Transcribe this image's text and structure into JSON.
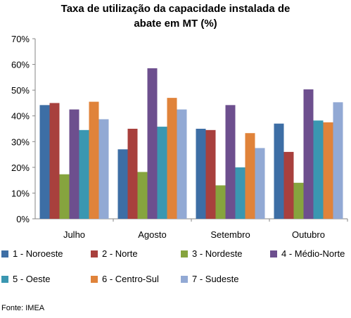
{
  "chart_data": {
    "type": "bar",
    "title_line1": "Taxa de utilização da capacidade instalada de",
    "title_line2": "abate em MT (%)",
    "categories": [
      "Julho",
      "Agosto",
      "Setembro",
      "Outubro"
    ],
    "ylim": [
      0,
      70
    ],
    "yticks": [
      "0%",
      "10%",
      "20%",
      "30%",
      "40%",
      "50%",
      "60%",
      "70%"
    ],
    "grid": false,
    "legend_position": "bottom",
    "series": [
      {
        "name": "1 - Noroeste",
        "color": "#3d6ea5",
        "values": [
          44.2,
          27.0,
          35.0,
          37.0
        ]
      },
      {
        "name": "2 - Norte",
        "color": "#a8403d",
        "values": [
          45.0,
          35.0,
          34.5,
          26.0
        ]
      },
      {
        "name": "3 - Nordeste",
        "color": "#86a43e",
        "values": [
          17.3,
          18.2,
          13.0,
          14.0
        ]
      },
      {
        "name": "4 - Médio-Norte",
        "color": "#6d4f8e",
        "values": [
          42.5,
          58.5,
          44.2,
          50.3
        ]
      },
      {
        "name": "5 - Oeste",
        "color": "#3a97b1",
        "values": [
          34.5,
          35.8,
          20.0,
          38.2
        ]
      },
      {
        "name": "6 - Centro-Sul",
        "color": "#e0833a",
        "values": [
          45.5,
          47.0,
          33.3,
          37.5
        ]
      },
      {
        "name": "7 - Sudeste",
        "color": "#92a9d4",
        "values": [
          38.7,
          42.5,
          27.5,
          45.3
        ]
      }
    ]
  },
  "source": "Fonte: IMEA"
}
